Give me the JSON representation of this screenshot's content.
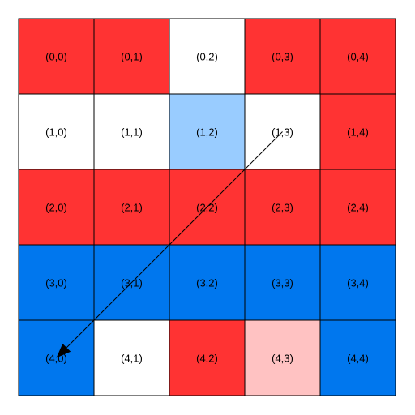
{
  "grid": {
    "rows": 5,
    "cols": 5,
    "colors": {
      "red": "#ff3333",
      "white": "#ffffff",
      "light-blue": "#99ccff",
      "blue": "#0077ee",
      "pink": "#ffc2c2",
      "border": "#000000"
    },
    "cells": [
      [
        {
          "label": "(0,0)",
          "color": "red"
        },
        {
          "label": "(0,1)",
          "color": "red"
        },
        {
          "label": "(0,2)",
          "color": "white"
        },
        {
          "label": "(0,3)",
          "color": "red"
        },
        {
          "label": "(0,4)",
          "color": "red"
        }
      ],
      [
        {
          "label": "(1,0)",
          "color": "white"
        },
        {
          "label": "(1,1)",
          "color": "white"
        },
        {
          "label": "(1,2)",
          "color": "light-blue"
        },
        {
          "label": "(1,3)",
          "color": "white"
        },
        {
          "label": "(1,4)",
          "color": "red"
        }
      ],
      [
        {
          "label": "(2,0)",
          "color": "red"
        },
        {
          "label": "(2,1)",
          "color": "red"
        },
        {
          "label": "(2,2)",
          "color": "red"
        },
        {
          "label": "(2,3)",
          "color": "red"
        },
        {
          "label": "(2,4)",
          "color": "red"
        }
      ],
      [
        {
          "label": "(3,0)",
          "color": "blue"
        },
        {
          "label": "(3,1)",
          "color": "blue"
        },
        {
          "label": "(3,2)",
          "color": "blue"
        },
        {
          "label": "(3,3)",
          "color": "blue"
        },
        {
          "label": "(3,4)",
          "color": "blue"
        }
      ],
      [
        {
          "label": "(4,0)",
          "color": "blue"
        },
        {
          "label": "(4,1)",
          "color": "white"
        },
        {
          "label": "(4,2)",
          "color": "red"
        },
        {
          "label": "(4,3)",
          "color": "pink"
        },
        {
          "label": "(4,4)",
          "color": "blue"
        }
      ]
    ]
  },
  "arrow": {
    "from": [
      1,
      3
    ],
    "to": [
      4,
      0
    ],
    "color": "#000000"
  }
}
